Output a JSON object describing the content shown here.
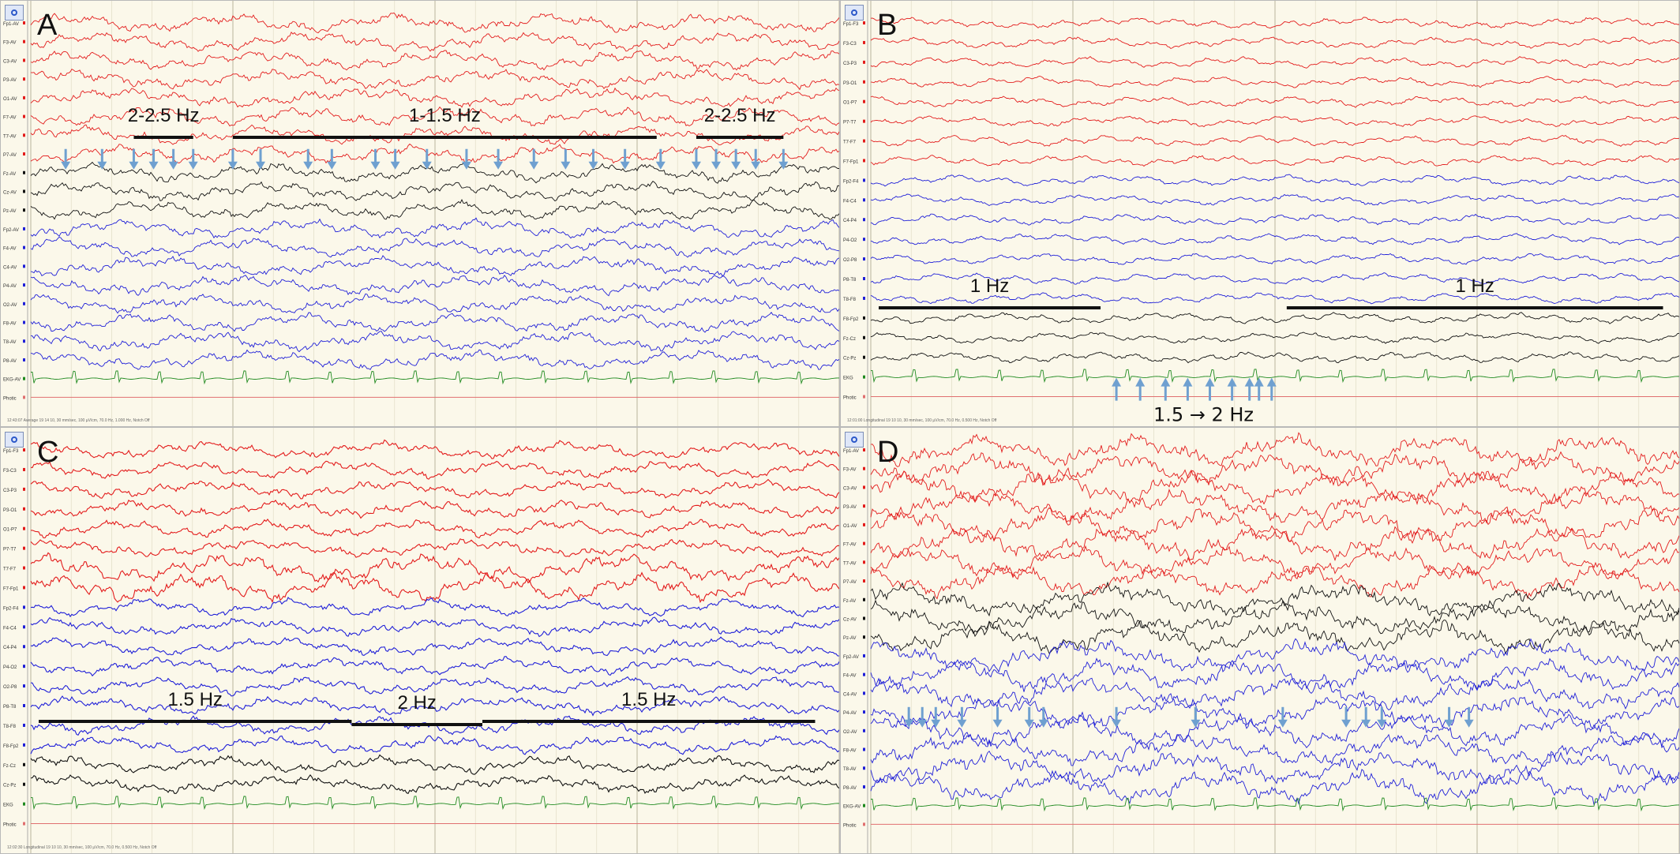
{
  "colors": {
    "background": "#fbf8ea",
    "frontal_red": "#e31c1c",
    "midline_black": "#111111",
    "posterior_blue": "#2020d8",
    "ekg_green": "#1f8a1f",
    "photic_line": "#e07070",
    "arrow": "#6fa0d0",
    "bar": "#111111"
  },
  "icons": {
    "toolbar": "eeg-app-icon",
    "arrow": "arrow-icon"
  },
  "panels": [
    {
      "id": "A",
      "label": "A",
      "channels": [
        "Fp1-AV",
        "F3-AV",
        "C3-AV",
        "P3-AV",
        "O1-AV",
        "F7-AV",
        "T7-AV",
        "P7-AV",
        "Fz-AV",
        "Cz-AV",
        "Pz-AV",
        "Fp2-AV",
        "F4-AV",
        "C4-AV",
        "P4-AV",
        "O2-AV",
        "F8-AV",
        "T8-AV",
        "P8-AV",
        "EKG-AV",
        "Photic"
      ],
      "channel_colors": [
        "red",
        "red",
        "red",
        "red",
        "red",
        "red",
        "red",
        "red",
        "black",
        "black",
        "black",
        "blue",
        "blue",
        "blue",
        "blue",
        "blue",
        "blue",
        "blue",
        "blue",
        "green",
        "photic"
      ],
      "annotations": [
        {
          "text": "2-2.5 Hz",
          "bar_start": 0.13,
          "bar_end": 0.205
        },
        {
          "text": "1-1.5 Hz",
          "bar_start": 0.255,
          "bar_end": 0.79
        },
        {
          "text": "2-2.5 Hz",
          "bar_start": 0.84,
          "bar_end": 0.95
        }
      ],
      "arrows": {
        "direction": "down",
        "channel_index": 8,
        "positions": [
          0.044,
          0.09,
          0.13,
          0.155,
          0.18,
          0.205,
          0.255,
          0.29,
          0.35,
          0.38,
          0.435,
          0.46,
          0.5,
          0.55,
          0.59,
          0.635,
          0.675,
          0.71,
          0.75,
          0.795,
          0.84,
          0.865,
          0.89,
          0.915,
          0.95
        ]
      },
      "footer": "12:43:07 Average 19 14 10, 30 mm/sec, 100 µV/cm, 70.0 Hz, 1.000 Hz, Notch Off"
    },
    {
      "id": "B",
      "label": "B",
      "channels": [
        "Fp1-F3",
        "F3-C3",
        "C3-P3",
        "P3-O1",
        "O1-P7",
        "P7-T7",
        "T7-F7",
        "F7-Fp1",
        "Fp2-F4",
        "F4-C4",
        "C4-P4",
        "P4-O2",
        "O2-P8",
        "P8-T8",
        "T8-F8",
        "F8-Fp2",
        "Fz-Cz",
        "Cz-Pz",
        "EKG",
        "Photic"
      ],
      "channel_colors": [
        "red",
        "red",
        "red",
        "red",
        "red",
        "red",
        "red",
        "red",
        "blue",
        "blue",
        "blue",
        "blue",
        "blue",
        "blue",
        "blue",
        "black",
        "black",
        "black",
        "green",
        "photic"
      ],
      "annotations": [
        {
          "text": "1 Hz",
          "bar_start": 0.01,
          "bar_end": 0.29
        },
        {
          "text": "1 Hz",
          "bar_start": 0.525,
          "bar_end": 1.0
        }
      ],
      "arrows": {
        "direction": "up",
        "channel_index": 18,
        "positions": [
          0.31,
          0.34,
          0.372,
          0.4,
          0.428,
          0.456,
          0.478,
          0.49,
          0.506
        ],
        "label": "1.5 → 2 Hz"
      },
      "footer": "12:01:00 Longitudinal 19 10 10, 30 mm/sec, 100 µV/cm, 70.0 Hz, 0.500 Hz, Notch Off"
    },
    {
      "id": "C",
      "label": "C",
      "channels": [
        "Fp1-F3",
        "F3-C3",
        "C3-P3",
        "P3-O1",
        "O1-P7",
        "P7-T7",
        "T7-F7",
        "F7-Fp1",
        "Fp2-F4",
        "F4-C4",
        "C4-P4",
        "P4-O2",
        "O2-P8",
        "P8-T8",
        "T8-F8",
        "F8-Fp2",
        "Fz-Cz",
        "Cz-Pz",
        "EKG",
        "Photic"
      ],
      "channel_colors": [
        "red",
        "red",
        "red",
        "red",
        "red",
        "red",
        "red",
        "red",
        "blue",
        "blue",
        "blue",
        "blue",
        "blue",
        "blue",
        "blue",
        "blue",
        "black",
        "black",
        "green",
        "photic"
      ],
      "annotations": [
        {
          "text": "1.5 Hz",
          "bar_start": 0.01,
          "bar_end": 0.405
        },
        {
          "text": "2 Hz",
          "bar_start": 0.405,
          "bar_end": 0.57
        },
        {
          "text": "1.5 Hz",
          "bar_start": 0.57,
          "bar_end": 0.99
        }
      ],
      "arrows": null,
      "footer": "12:02:30 Longitudinal 19 10 10, 30 mm/sec, 100 µV/cm, 70.0 Hz, 0.500 Hz, Notch Off"
    },
    {
      "id": "D",
      "label": "D",
      "channels": [
        "Fp1-AV",
        "F3-AV",
        "C3-AV",
        "P3-AV",
        "O1-AV",
        "F7-AV",
        "T7-AV",
        "P7-AV",
        "Fz-AV",
        "Cz-AV",
        "Pz-AV",
        "Fp2-AV",
        "F4-AV",
        "C4-AV",
        "P4-AV",
        "O2-AV",
        "F8-AV",
        "T8-AV",
        "P8-AV",
        "EKG-AV",
        "Photic"
      ],
      "channel_colors": [
        "red",
        "red",
        "red",
        "red",
        "red",
        "red",
        "red",
        "red",
        "black",
        "black",
        "black",
        "blue",
        "blue",
        "blue",
        "blue",
        "blue",
        "blue",
        "blue",
        "blue",
        "green",
        "photic"
      ],
      "annotations": [],
      "arrows": {
        "direction": "down",
        "channel_index": 15,
        "positions": [
          0.048,
          0.065,
          0.082,
          0.115,
          0.16,
          0.2,
          0.218,
          0.31,
          0.41,
          0.52,
          0.6,
          0.625,
          0.645,
          0.73,
          0.755
        ]
      },
      "footer": ""
    }
  ]
}
